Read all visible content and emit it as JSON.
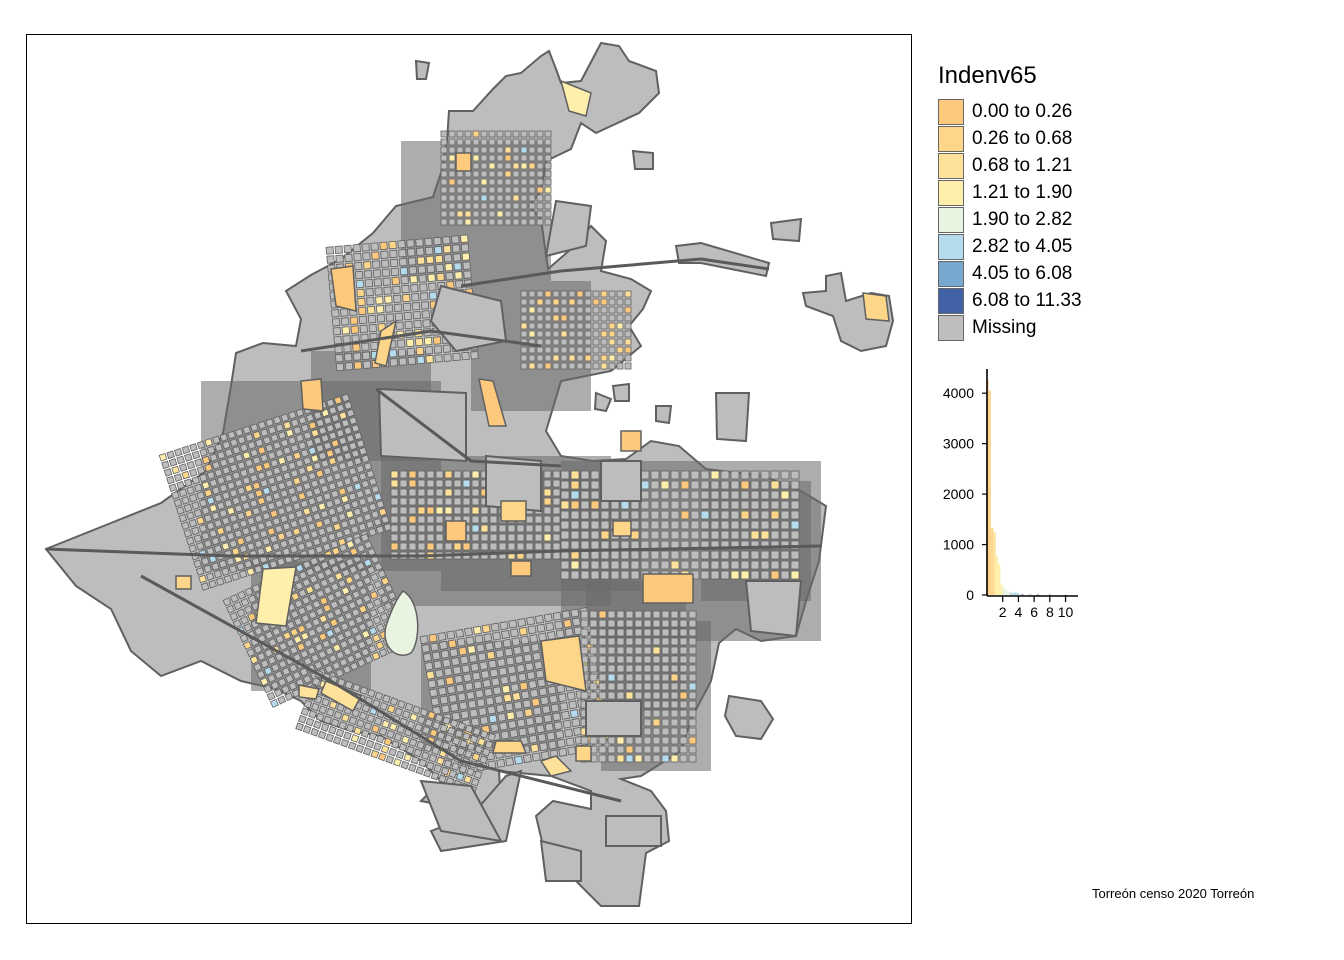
{
  "legend": {
    "title": "Indenv65",
    "classes": [
      {
        "label": "0.00 to 0.26",
        "color": "#fdc97c"
      },
      {
        "label": "0.26 to 0.68",
        "color": "#fed68a"
      },
      {
        "label": "0.68 to 1.21",
        "color": "#fee29a"
      },
      {
        "label": "1.21 to 1.90",
        "color": "#ffefad"
      },
      {
        "label": "1.90 to 2.82",
        "color": "#e8f4df"
      },
      {
        "label": "2.82 to 4.05",
        "color": "#b5dcec"
      },
      {
        "label": "4.05 to 6.08",
        "color": "#77a8d0"
      },
      {
        "label": "6.08 to 11.33",
        "color": "#4262a8"
      },
      {
        "label": "Missing",
        "color": "#bebebe"
      }
    ]
  },
  "chart_data": {
    "type": "bar",
    "yticks": [
      0,
      1000,
      2000,
      3000,
      4000
    ],
    "xticks": [
      2,
      4,
      6,
      8,
      10
    ],
    "ylim": [
      0,
      4400
    ],
    "xlim": [
      0,
      11.33
    ],
    "bins": [
      {
        "x": 0.05,
        "count": 4250
      },
      {
        "x": 0.35,
        "count": 4050
      },
      {
        "x": 0.65,
        "count": 1330
      },
      {
        "x": 0.95,
        "count": 1250
      },
      {
        "x": 1.25,
        "count": 780
      },
      {
        "x": 1.55,
        "count": 620
      },
      {
        "x": 1.85,
        "count": 210
      },
      {
        "x": 2.15,
        "count": 150
      },
      {
        "x": 2.45,
        "count": 90
      },
      {
        "x": 2.75,
        "count": 70
      },
      {
        "x": 3.05,
        "count": 50
      },
      {
        "x": 3.35,
        "count": 40
      },
      {
        "x": 3.65,
        "count": 55
      },
      {
        "x": 3.95,
        "count": 35
      },
      {
        "x": 4.5,
        "count": 20
      },
      {
        "x": 5.5,
        "count": 12
      },
      {
        "x": 6.5,
        "count": 8
      },
      {
        "x": 8.0,
        "count": 5
      },
      {
        "x": 10.0,
        "count": 3
      }
    ]
  },
  "caption": "Torreón censo 2020 Torreón"
}
